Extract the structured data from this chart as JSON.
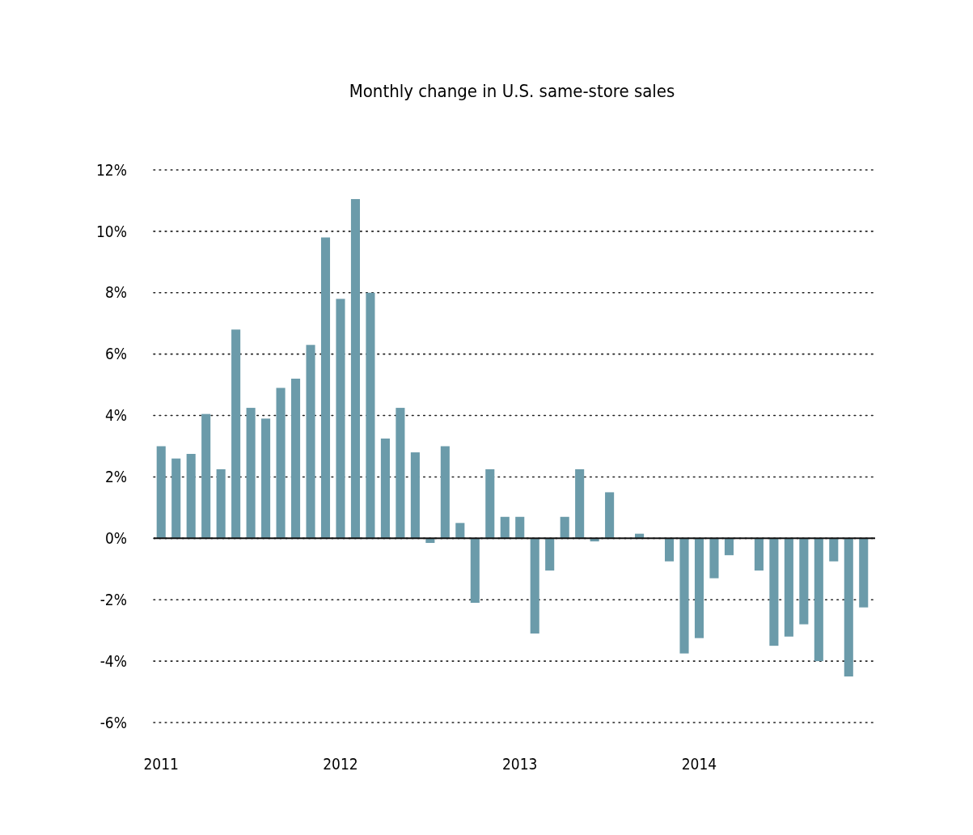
{
  "chart_data": {
    "type": "bar",
    "title": "Monthly change in U.S. same-store sales",
    "categories": [
      "2011",
      null,
      null,
      null,
      null,
      null,
      null,
      null,
      null,
      null,
      null,
      null,
      "2012",
      null,
      null,
      null,
      null,
      null,
      null,
      null,
      null,
      null,
      null,
      null,
      "2013",
      null,
      null,
      null,
      null,
      null,
      null,
      null,
      null,
      null,
      null,
      null,
      "2014",
      null,
      null,
      null,
      null,
      null,
      null,
      null,
      null,
      null,
      null,
      null
    ],
    "values": [
      3.0,
      2.6,
      2.75,
      4.05,
      2.25,
      6.8,
      4.25,
      3.9,
      4.9,
      5.2,
      6.3,
      9.8,
      7.8,
      11.05,
      8.0,
      3.25,
      4.25,
      2.8,
      -0.15,
      3.0,
      0.5,
      -2.1,
      2.25,
      0.7,
      0.7,
      -3.1,
      -1.05,
      0.7,
      2.25,
      -0.1,
      1.5,
      0,
      0.15,
      0,
      -0.75,
      -3.75,
      -3.25,
      -1.3,
      -0.55,
      0,
      -1.05,
      -3.5,
      -3.2,
      -2.8,
      -4.0,
      -0.75,
      -4.5,
      -2.25
    ],
    "color": "#6b9baa",
    "ylim": [
      -6,
      12
    ],
    "yticks": [
      {
        "value": -6,
        "label": "-6%"
      },
      {
        "value": -4,
        "label": "-4%"
      },
      {
        "value": -2,
        "label": "-2%"
      },
      {
        "value": 0,
        "label": "0%"
      },
      {
        "value": 2,
        "label": "2%"
      },
      {
        "value": 4,
        "label": "4%"
      },
      {
        "value": 6,
        "label": "6%"
      },
      {
        "value": 8,
        "label": "8%"
      },
      {
        "value": 10,
        "label": "10%"
      },
      {
        "value": 12,
        "label": "12%"
      }
    ],
    "grid": "y"
  }
}
